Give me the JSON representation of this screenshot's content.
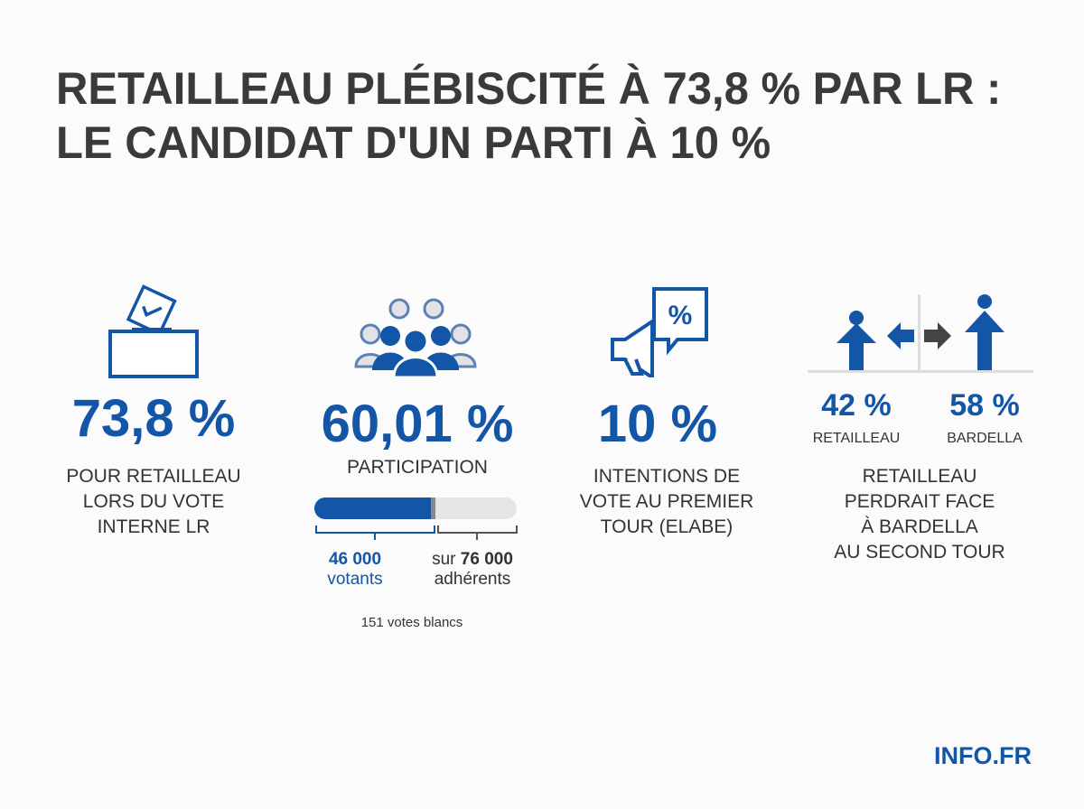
{
  "title": {
    "line1": "RETAILLEAU PLÉBISCITÉ À 73,8 % PAR LR :",
    "line2": "LE CANDIDAT D'UN PARTI À 10 %"
  },
  "colors": {
    "accent": "#1356a8",
    "text": "#333333",
    "bar_track": "#e6e6e8"
  },
  "stats": [
    {
      "icon": "ballot-box-icon",
      "value": "73,8 %",
      "label": [
        "POUR RETAILLEAU",
        "LORS DU VOTE",
        "INTERNE LR"
      ]
    },
    {
      "icon": "crowd-icon",
      "value": "60,01 %",
      "label": [
        "PARTICIPATION"
      ],
      "progress_percent": 60.01,
      "voters": {
        "number": "46 000",
        "unit": "votants"
      },
      "members": {
        "prefix": "sur",
        "number": "76 000",
        "unit": "adhérents"
      },
      "blank_votes": "151 votes blancs"
    },
    {
      "icon": "megaphone-percent-icon",
      "value": "10 %",
      "label": [
        "INTENTIONS DE",
        "VOTE AU PREMIER",
        "TOUR (ELABE)"
      ]
    },
    {
      "icon": "duel-figures-icon",
      "left": {
        "value": "42 %",
        "name": "RETAILLEAU"
      },
      "right": {
        "value": "58 %",
        "name": "BARDELLA"
      },
      "label": [
        "RETAILLEAU",
        "PERDRAIT FACE",
        "À BARDELLA",
        "AU SECOND TOUR"
      ]
    }
  ],
  "brand": "INFO.FR"
}
